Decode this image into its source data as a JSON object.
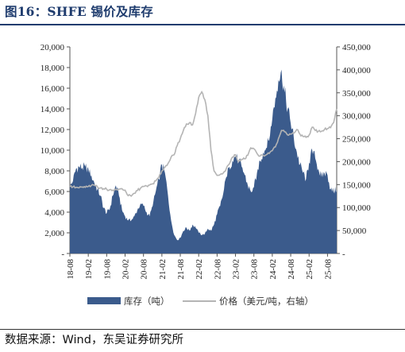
{
  "header": {
    "title": "图16：SHFE 锡价及库存"
  },
  "footer": {
    "source": "数据来源：Wind，东吴证券研究所"
  },
  "chart_data": {
    "type": "area",
    "legend_position": "bottom",
    "grid": false,
    "y_left": {
      "range": [
        0,
        20000
      ],
      "ticks": [
        0,
        2000,
        4000,
        6000,
        8000,
        10000,
        12000,
        14000,
        16000,
        18000,
        20000
      ],
      "tick_labels": [
        "-",
        "2,000",
        "4,000",
        "6,000",
        "8,000",
        "10,000",
        "12,000",
        "14,000",
        "16,000",
        "18,000",
        "20,000"
      ]
    },
    "y_right": {
      "range": [
        0,
        450000
      ],
      "ticks": [
        0,
        50000,
        100000,
        150000,
        200000,
        250000,
        300000,
        350000,
        400000,
        450000
      ],
      "tick_labels": [
        "-",
        "50,000",
        "100,000",
        "150,000",
        "200,000",
        "250,000",
        "300,000",
        "350,000",
        "400,000",
        "450,000"
      ]
    },
    "x": {
      "range": [
        "2018-08",
        "2025-11"
      ],
      "tick_labels": [
        "18-08",
        "19-02",
        "19-08",
        "20-02",
        "20-08",
        "21-02",
        "21-08",
        "22-02",
        "22-08",
        "23-02",
        "23-08",
        "24-02",
        "24-08",
        "25-02",
        "25-08"
      ]
    },
    "colors": {
      "inventory": "#3b5b8c",
      "price": "#b4b4b4",
      "title": "#1f3c6e"
    },
    "series": [
      {
        "name": "库存（吨）",
        "axis": "left",
        "kind": "area",
        "points": [
          [
            "2018-08",
            6400
          ],
          [
            "2018-09",
            7000
          ],
          [
            "2018-10",
            8200
          ],
          [
            "2018-11",
            8400
          ],
          [
            "2018-12",
            8300
          ],
          [
            "2019-01",
            8400
          ],
          [
            "2019-02",
            8200
          ],
          [
            "2019-03",
            7600
          ],
          [
            "2019-04",
            6800
          ],
          [
            "2019-05",
            6200
          ],
          [
            "2019-06",
            5600
          ],
          [
            "2019-07",
            4400
          ],
          [
            "2019-08",
            3900
          ],
          [
            "2019-09",
            4300
          ],
          [
            "2019-10",
            5600
          ],
          [
            "2019-11",
            6600
          ],
          [
            "2019-12",
            5600
          ],
          [
            "2020-01",
            4200
          ],
          [
            "2020-02",
            3600
          ],
          [
            "2020-03",
            3200
          ],
          [
            "2020-04",
            3200
          ],
          [
            "2020-05",
            3600
          ],
          [
            "2020-06",
            4200
          ],
          [
            "2020-07",
            4800
          ],
          [
            "2020-08",
            4600
          ],
          [
            "2020-09",
            4000
          ],
          [
            "2020-10",
            3600
          ],
          [
            "2020-11",
            4600
          ],
          [
            "2020-12",
            6000
          ],
          [
            "2021-01",
            7200
          ],
          [
            "2021-02",
            8600
          ],
          [
            "2021-03",
            7800
          ],
          [
            "2021-04",
            5600
          ],
          [
            "2021-05",
            3200
          ],
          [
            "2021-06",
            1800
          ],
          [
            "2021-07",
            1300
          ],
          [
            "2021-08",
            1500
          ],
          [
            "2021-09",
            2200
          ],
          [
            "2021-10",
            2500
          ],
          [
            "2021-11",
            2200
          ],
          [
            "2021-12",
            2800
          ],
          [
            "2022-01",
            2500
          ],
          [
            "2022-02",
            2000
          ],
          [
            "2022-03",
            1800
          ],
          [
            "2022-04",
            1900
          ],
          [
            "2022-05",
            2400
          ],
          [
            "2022-06",
            2200
          ],
          [
            "2022-07",
            2800
          ],
          [
            "2022-08",
            3800
          ],
          [
            "2022-09",
            4600
          ],
          [
            "2022-10",
            5800
          ],
          [
            "2022-11",
            7400
          ],
          [
            "2022-12",
            8400
          ],
          [
            "2023-01",
            9000
          ],
          [
            "2023-02",
            9400
          ],
          [
            "2023-03",
            9000
          ],
          [
            "2023-04",
            8400
          ],
          [
            "2023-05",
            7600
          ],
          [
            "2023-06",
            6600
          ],
          [
            "2023-07",
            6000
          ],
          [
            "2023-08",
            6400
          ],
          [
            "2023-09",
            7800
          ],
          [
            "2023-10",
            9000
          ],
          [
            "2023-11",
            9800
          ],
          [
            "2023-12",
            10200
          ],
          [
            "2024-01",
            11000
          ],
          [
            "2024-02",
            13000
          ],
          [
            "2024-03",
            15000
          ],
          [
            "2024-04",
            16800
          ],
          [
            "2024-05",
            17800
          ],
          [
            "2024-06",
            15600
          ],
          [
            "2024-07",
            14000
          ],
          [
            "2024-08",
            12600
          ],
          [
            "2024-09",
            11200
          ],
          [
            "2024-10",
            9800
          ],
          [
            "2024-11",
            8600
          ],
          [
            "2024-12",
            7800
          ],
          [
            "2025-01",
            7200
          ],
          [
            "2025-02",
            8800
          ],
          [
            "2025-03",
            10000
          ],
          [
            "2025-04",
            9200
          ],
          [
            "2025-05",
            8200
          ],
          [
            "2025-06",
            7400
          ],
          [
            "2025-07",
            7800
          ],
          [
            "2025-08",
            7600
          ],
          [
            "2025-09",
            6200
          ],
          [
            "2025-10",
            6000
          ],
          [
            "2025-11",
            6200
          ]
        ]
      },
      {
        "name": "价格（美元/吨，右轴）",
        "axis": "right",
        "kind": "line",
        "points": [
          [
            "2018-08",
            146000
          ],
          [
            "2018-09",
            145000
          ],
          [
            "2018-10",
            144000
          ],
          [
            "2018-11",
            143000
          ],
          [
            "2018-12",
            145000
          ],
          [
            "2019-01",
            144000
          ],
          [
            "2019-02",
            146000
          ],
          [
            "2019-03",
            148000
          ],
          [
            "2019-04",
            149000
          ],
          [
            "2019-05",
            145000
          ],
          [
            "2019-06",
            143000
          ],
          [
            "2019-07",
            141000
          ],
          [
            "2019-08",
            140000
          ],
          [
            "2019-09",
            139000
          ],
          [
            "2019-10",
            138000
          ],
          [
            "2019-11",
            139000
          ],
          [
            "2019-12",
            140000
          ],
          [
            "2020-01",
            141000
          ],
          [
            "2020-02",
            138000
          ],
          [
            "2020-03",
            126000
          ],
          [
            "2020-04",
            125000
          ],
          [
            "2020-05",
            131000
          ],
          [
            "2020-06",
            137000
          ],
          [
            "2020-07",
            142000
          ],
          [
            "2020-08",
            146000
          ],
          [
            "2020-09",
            147000
          ],
          [
            "2020-10",
            149000
          ],
          [
            "2020-11",
            152000
          ],
          [
            "2020-12",
            158000
          ],
          [
            "2021-01",
            166000
          ],
          [
            "2021-02",
            180000
          ],
          [
            "2021-03",
            188000
          ],
          [
            "2021-04",
            196000
          ],
          [
            "2021-05",
            210000
          ],
          [
            "2021-06",
            215000
          ],
          [
            "2021-07",
            235000
          ],
          [
            "2021-08",
            250000
          ],
          [
            "2021-09",
            268000
          ],
          [
            "2021-10",
            282000
          ],
          [
            "2021-11",
            285000
          ],
          [
            "2021-12",
            280000
          ],
          [
            "2022-01",
            305000
          ],
          [
            "2022-02",
            340000
          ],
          [
            "2022-03",
            352000
          ],
          [
            "2022-04",
            335000
          ],
          [
            "2022-05",
            300000
          ],
          [
            "2022-06",
            225000
          ],
          [
            "2022-07",
            180000
          ],
          [
            "2022-08",
            170000
          ],
          [
            "2022-09",
            172000
          ],
          [
            "2022-10",
            175000
          ],
          [
            "2022-11",
            185000
          ],
          [
            "2022-12",
            195000
          ],
          [
            "2023-01",
            210000
          ],
          [
            "2023-02",
            215000
          ],
          [
            "2023-03",
            200000
          ],
          [
            "2023-04",
            205000
          ],
          [
            "2023-05",
            206000
          ],
          [
            "2023-06",
            214000
          ],
          [
            "2023-07",
            230000
          ],
          [
            "2023-08",
            228000
          ],
          [
            "2023-09",
            218000
          ],
          [
            "2023-10",
            212000
          ],
          [
            "2023-11",
            214000
          ],
          [
            "2023-12",
            215000
          ],
          [
            "2024-01",
            218000
          ],
          [
            "2024-02",
            224000
          ],
          [
            "2024-03",
            232000
          ],
          [
            "2024-04",
            250000
          ],
          [
            "2024-05",
            268000
          ],
          [
            "2024-06",
            265000
          ],
          [
            "2024-07",
            258000
          ],
          [
            "2024-08",
            260000
          ],
          [
            "2024-09",
            262000
          ],
          [
            "2024-10",
            270000
          ],
          [
            "2024-11",
            260000
          ],
          [
            "2024-12",
            255000
          ],
          [
            "2025-01",
            253000
          ],
          [
            "2025-02",
            258000
          ],
          [
            "2025-03",
            275000
          ],
          [
            "2025-04",
            268000
          ],
          [
            "2025-05",
            266000
          ],
          [
            "2025-06",
            266000
          ],
          [
            "2025-07",
            270000
          ],
          [
            "2025-08",
            272000
          ],
          [
            "2025-09",
            274000
          ],
          [
            "2025-10",
            285000
          ],
          [
            "2025-11",
            315000
          ]
        ]
      }
    ]
  }
}
